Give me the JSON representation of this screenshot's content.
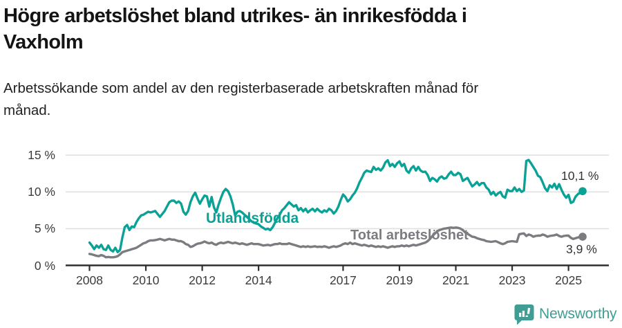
{
  "header": {
    "title_lines": [
      "Högre arbetslöshet bland utrikes- än inrikesfödda i",
      "Vaxholm"
    ],
    "subtitle_lines": [
      "Arbetssökande som andel av den registerbaserade arbetskraften månad för",
      "månad."
    ]
  },
  "chart_data": {
    "type": "line",
    "title": "Högre arbetslöshet bland utrikes- än inrikesfödda i Vaxholm",
    "subtitle": "Arbetssökande som andel av den registerbaserade arbetskraften månad för månad.",
    "x_unit": "month",
    "x_start_year": 2008,
    "x_end_year": 2025.5,
    "ylim": [
      0,
      15
    ],
    "grid": "horizontal",
    "y_tick_values": [
      0,
      5,
      10,
      15
    ],
    "y_tick_labels": [
      "0 %",
      "5 %",
      "10 %",
      "15 %"
    ],
    "x_tick_values": [
      2008,
      2010,
      2012,
      2014,
      2017,
      2019,
      2021,
      2023,
      2025
    ],
    "x_tick_labels": [
      "2008",
      "2010",
      "2012",
      "2014",
      "2017",
      "2019",
      "2021",
      "2023",
      "2025"
    ],
    "series": [
      {
        "name": "Utlandsfödda",
        "color": "#0aa296",
        "end_label": "10,1 %",
        "end_value": 10.1,
        "values": [
          3.1,
          2.7,
          2.2,
          2.7,
          2.4,
          2.8,
          2.2,
          2.1,
          2.7,
          2.1,
          1.9,
          2.4,
          1.8,
          2.1,
          3.8,
          5.2,
          5.5,
          4.8,
          5.3,
          5.2,
          5.9,
          6.4,
          6.8,
          6.9,
          7.1,
          7.3,
          7.2,
          7.3,
          7.4,
          7.0,
          6.6,
          7.0,
          7.4,
          8.0,
          8.6,
          8.8,
          8.8,
          8.5,
          8.7,
          8.4,
          7.3,
          6.9,
          7.4,
          8.6,
          9.4,
          9.9,
          9.1,
          8.4,
          9.0,
          9.5,
          9.4,
          8.0,
          9.3,
          7.9,
          7.2,
          8.3,
          9.2,
          10.0,
          10.4,
          10.1,
          9.4,
          8.3,
          6.8,
          7.3,
          7.4,
          7.2,
          6.9,
          6.6,
          6.3,
          6.0,
          5.8,
          5.7,
          5.6,
          5.3,
          5.1,
          4.9,
          5.0,
          4.8,
          5.2,
          5.8,
          6.4,
          6.9,
          7.5,
          7.8,
          8.2,
          8.6,
          8.3,
          8.0,
          8.2,
          7.5,
          7.8,
          7.35,
          7.7,
          7.2,
          7.5,
          7.7,
          7.35,
          7.7,
          7.4,
          7.2,
          7.5,
          7.3,
          7.7,
          7.5,
          7.05,
          7.4,
          8.0,
          8.9,
          9.65,
          9.3,
          8.7,
          9.0,
          9.5,
          9.9,
          10.5,
          11.3,
          11.9,
          12.6,
          12.9,
          12.8,
          12.7,
          13.4,
          13.0,
          13.2,
          12.9,
          13.3,
          14.0,
          14.3,
          13.5,
          13.8,
          13.4,
          13.9,
          14.15,
          13.5,
          13.8,
          12.9,
          12.6,
          13.2,
          13.5,
          12.9,
          13.4,
          12.9,
          12.7,
          12.75,
          12.3,
          11.5,
          11.9,
          11.7,
          11.4,
          11.9,
          12.1,
          11.8,
          11.9,
          12.4,
          12.75,
          12.3,
          12.3,
          12.6,
          12.4,
          11.5,
          11.7,
          11.9,
          11.3,
          10.75,
          11.0,
          11.35,
          10.9,
          11.2,
          11.2,
          10.6,
          10.3,
          9.65,
          10.0,
          9.5,
          9.8,
          10.0,
          9.4,
          9.2,
          10.3,
          10.1,
          10.1,
          10.6,
          10.1,
          10.4,
          10.0,
          10.2,
          14.2,
          14.35,
          13.9,
          13.4,
          12.9,
          12.2,
          12.0,
          11.3,
          10.5,
          10.1,
          10.9,
          10.6,
          11.1,
          10.4,
          11.05,
          10.3,
          9.65,
          9.2,
          9.6,
          8.5,
          8.65,
          9.35,
          9.7,
          9.9,
          10.1
        ]
      },
      {
        "name": "Total arbetslöshet",
        "color": "#7b7b80",
        "end_label": "3,9 %",
        "end_value": 3.9,
        "values": [
          1.55,
          1.5,
          1.4,
          1.3,
          1.25,
          1.4,
          1.3,
          1.1,
          1.15,
          1.1,
          1.1,
          1.15,
          1.25,
          1.5,
          1.8,
          1.9,
          2.0,
          2.1,
          2.2,
          2.3,
          2.4,
          2.6,
          2.8,
          3.0,
          3.1,
          3.3,
          3.4,
          3.4,
          3.45,
          3.5,
          3.6,
          3.5,
          3.4,
          3.5,
          3.6,
          3.5,
          3.5,
          3.4,
          3.3,
          3.3,
          3.15,
          2.9,
          2.8,
          2.5,
          2.6,
          2.8,
          2.95,
          3.0,
          3.1,
          3.25,
          3.1,
          3.0,
          3.1,
          2.9,
          2.8,
          3.0,
          3.1,
          3.0,
          3.1,
          3.2,
          3.1,
          3.0,
          3.1,
          3.0,
          2.9,
          3.0,
          2.9,
          2.8,
          2.9,
          3.0,
          2.9,
          2.9,
          2.9,
          2.8,
          2.7,
          2.75,
          2.8,
          2.7,
          2.8,
          2.9,
          2.9,
          3.0,
          2.9,
          2.9,
          2.9,
          3.0,
          2.9,
          2.8,
          2.7,
          2.6,
          2.5,
          2.6,
          2.5,
          2.6,
          2.5,
          2.55,
          2.6,
          2.5,
          2.55,
          2.5,
          2.6,
          2.5,
          2.4,
          2.5,
          2.6,
          2.5,
          2.6,
          2.7,
          2.9,
          3.0,
          2.9,
          3.1,
          2.9,
          3.0,
          2.9,
          2.8,
          2.7,
          2.8,
          2.7,
          2.6,
          2.7,
          2.6,
          2.5,
          2.6,
          2.5,
          2.6,
          2.5,
          2.4,
          2.5,
          2.6,
          2.5,
          2.6,
          2.6,
          2.7,
          2.6,
          2.7,
          2.6,
          2.7,
          2.8,
          2.7,
          2.8,
          2.9,
          3.0,
          3.1,
          3.3,
          3.6,
          4.0,
          4.3,
          4.6,
          4.8,
          4.9,
          5.0,
          5.05,
          5.1,
          5.15,
          5.1,
          5.15,
          5.1,
          5.0,
          4.8,
          4.5,
          4.3,
          4.1,
          3.9,
          3.85,
          3.7,
          3.6,
          3.5,
          3.45,
          3.3,
          3.25,
          3.2,
          3.25,
          3.3,
          3.15,
          3.0,
          2.9,
          3.0,
          3.2,
          3.25,
          3.3,
          3.25,
          3.2,
          4.25,
          4.3,
          4.35,
          4.0,
          4.2,
          4.1,
          3.9,
          4.0,
          4.05,
          4.05,
          4.2,
          4.1,
          3.9,
          4.0,
          4.05,
          4.1,
          4.2,
          4.0,
          3.9,
          4.0,
          4.05,
          4.05,
          3.75,
          3.6,
          3.7,
          3.8,
          3.85,
          3.9
        ]
      }
    ]
  },
  "footer": {
    "brand": "Newsworthy"
  },
  "colors": {
    "teal": "#0aa296",
    "gray": "#7b7b80",
    "gridline": "#e0e0e0",
    "axis": "#2e2e2e",
    "logo_teal": "#3f9d94"
  }
}
